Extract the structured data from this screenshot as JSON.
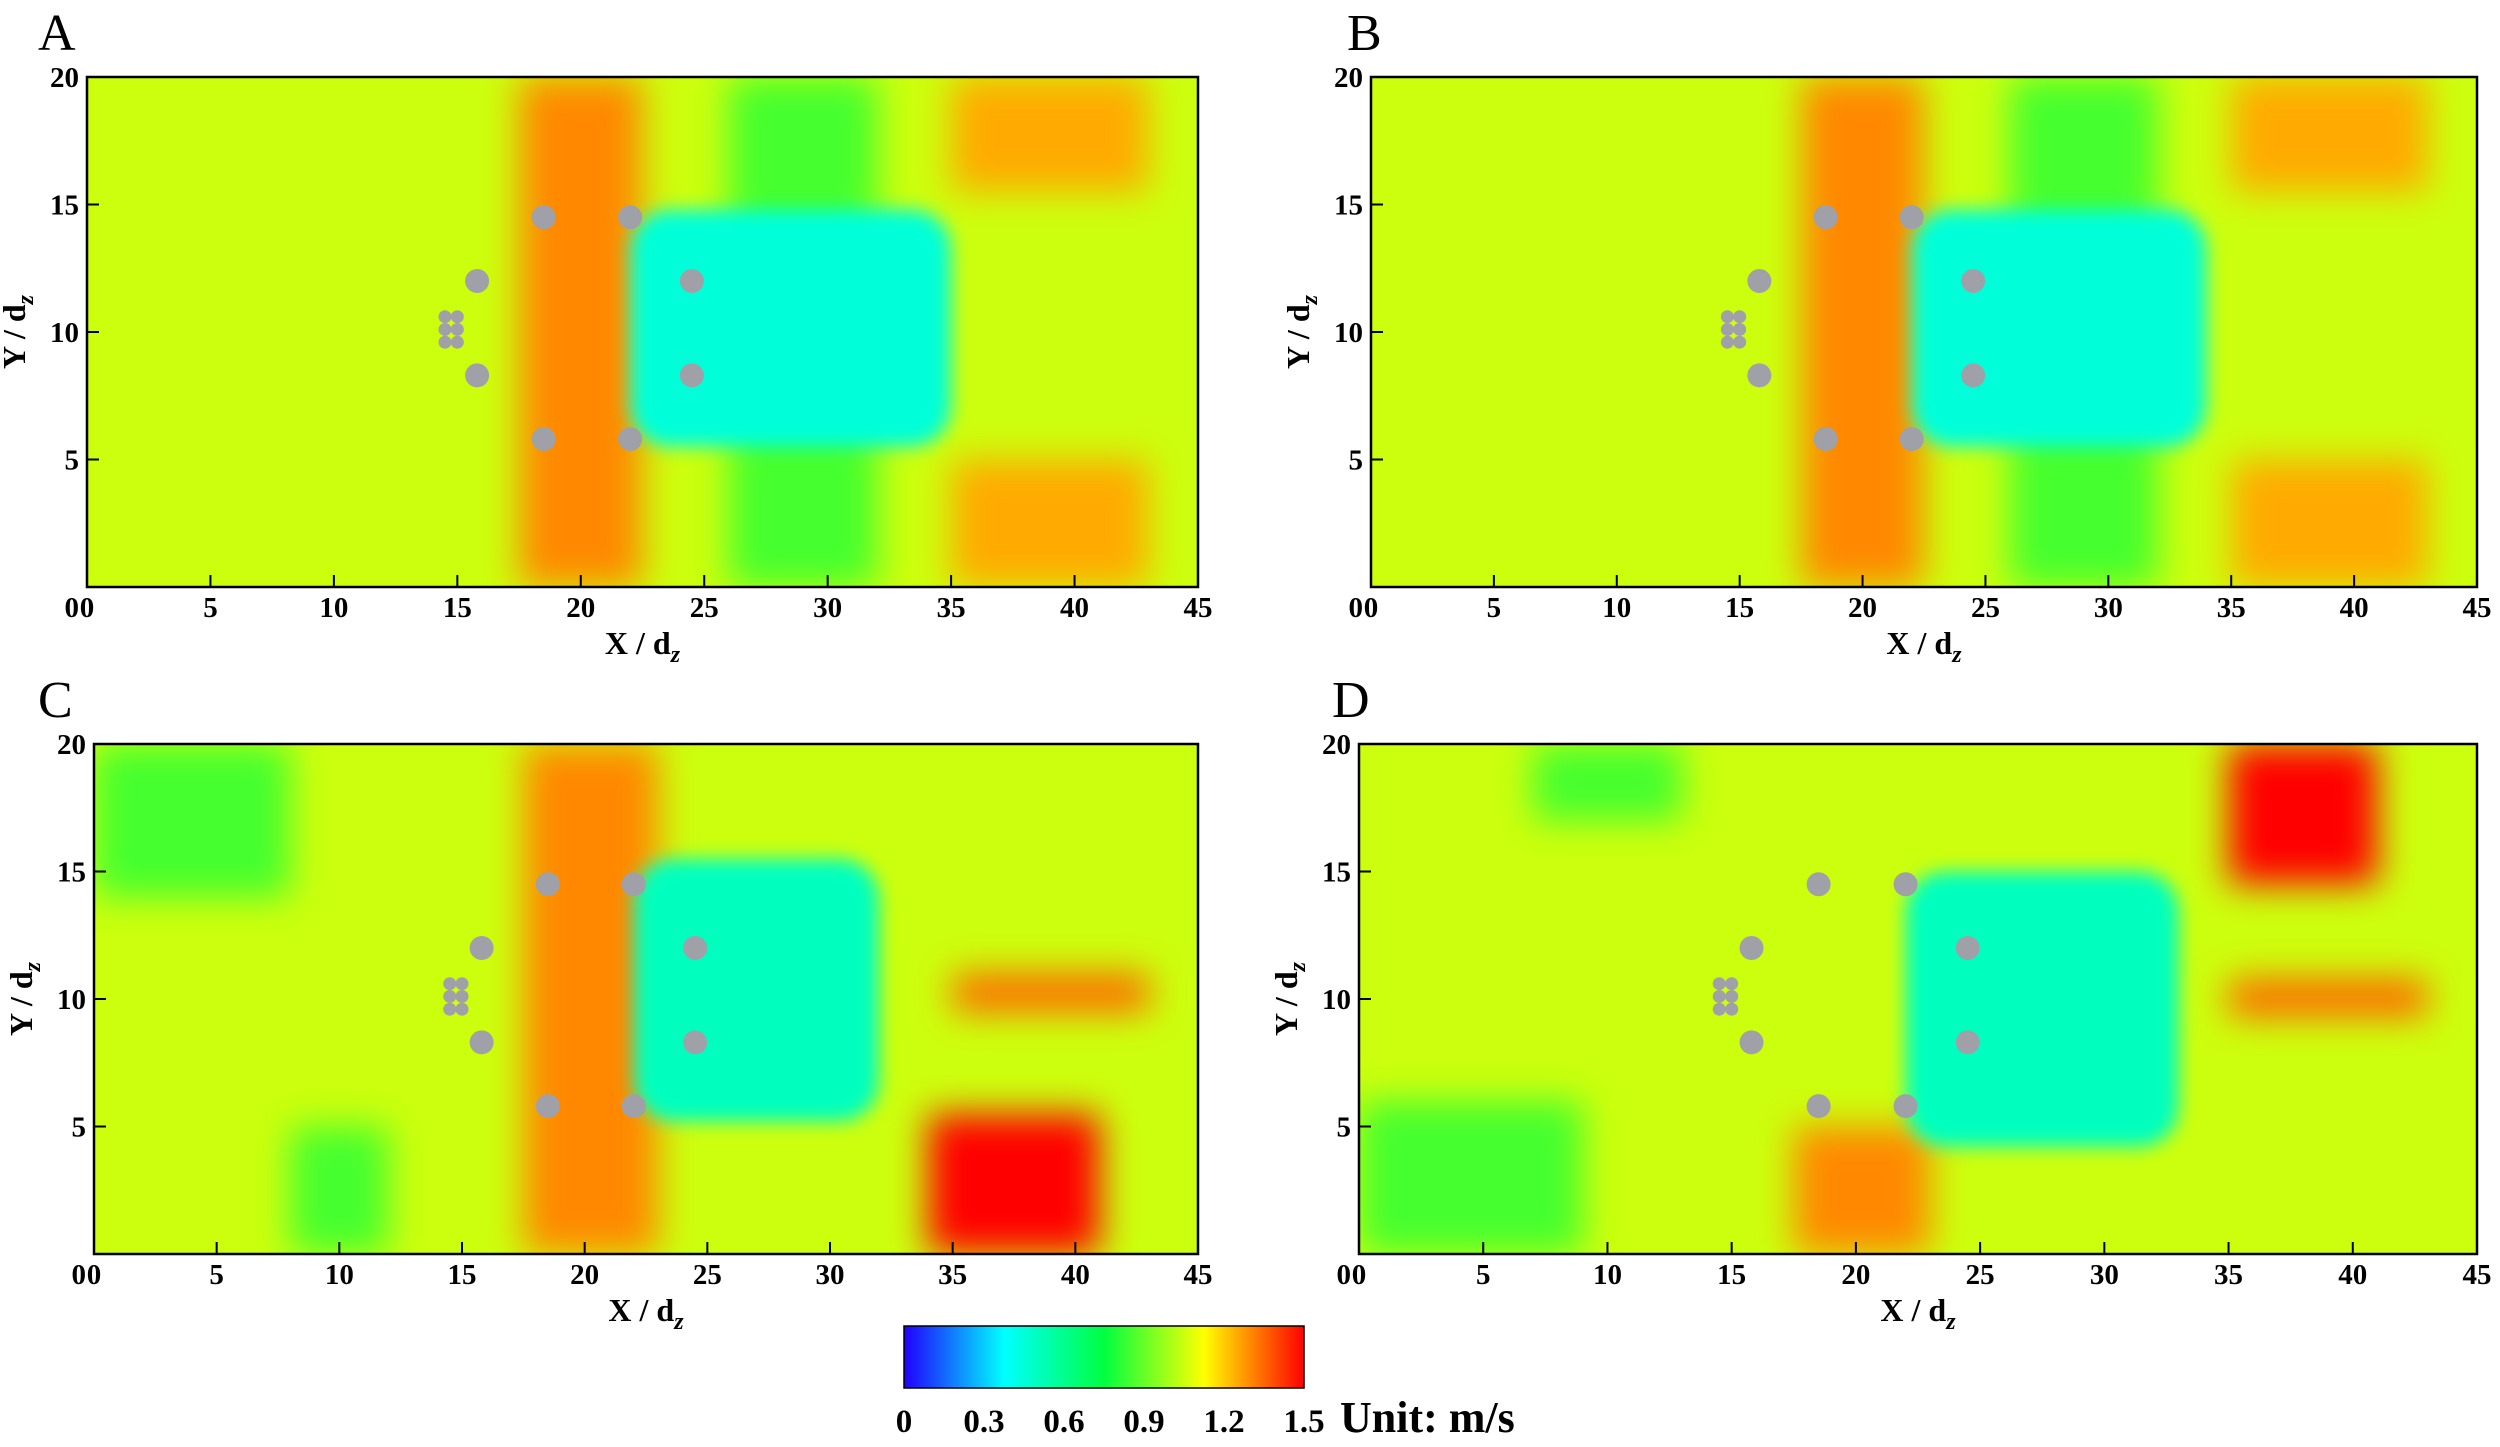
{
  "chart_data": {
    "type": "heatmap",
    "description_units": "velocity magnitude, m/s",
    "panels": [
      {
        "label": "A",
        "xlabel": "X / d",
        "xlabel_sub": "z",
        "ylabel": "Y / d",
        "ylabel_sub": "z",
        "xlim": [
          0,
          45
        ],
        "ylim": [
          0,
          20
        ],
        "xticks": [
          0,
          5,
          10,
          15,
          20,
          25,
          30,
          35,
          40,
          45
        ],
        "yticks": [
          5,
          10,
          15,
          20
        ],
        "background_velocity": 1.05,
        "bands": [
          {
            "x": [
              17.5,
              22.5
            ],
            "y": [
              0,
              20
            ],
            "velocity": 1.3
          },
          {
            "x": [
              26,
              32
            ],
            "y": [
              0,
              20
            ],
            "velocity": 0.85
          },
          {
            "x": [
              35,
              43
            ],
            "y": [
              15.5,
              20
            ],
            "velocity": 1.25
          },
          {
            "x": [
              35,
              43
            ],
            "y": [
              0,
              5
            ],
            "velocity": 1.25
          }
        ],
        "wakes": [
          {
            "x": [
              22,
              35
            ],
            "y": [
              5.5,
              14.8
            ],
            "velocity": 0.45
          }
        ],
        "cylinders_small": [
          [
            14.5,
            9.6
          ],
          [
            15,
            9.6
          ],
          [
            14.5,
            10.1
          ],
          [
            15,
            10.1
          ],
          [
            14.5,
            10.6
          ],
          [
            15,
            10.6
          ]
        ],
        "cylinders_large": [
          [
            15.8,
            12
          ],
          [
            15.8,
            8.3
          ],
          [
            18.5,
            14.5
          ],
          [
            18.5,
            5.8
          ],
          [
            22,
            14.5
          ],
          [
            22,
            5.8
          ],
          [
            24.5,
            12
          ],
          [
            24.5,
            8.3
          ]
        ]
      },
      {
        "label": "B",
        "xlabel": "X / d",
        "xlabel_sub": "z",
        "ylabel": "Y / d",
        "ylabel_sub": "z",
        "xlim": [
          0,
          45
        ],
        "ylim": [
          0,
          20
        ],
        "xticks": [
          0,
          5,
          10,
          15,
          20,
          25,
          30,
          35,
          40,
          45
        ],
        "yticks": [
          5,
          10,
          15,
          20
        ],
        "background_velocity": 1.05,
        "bands": [
          {
            "x": [
              17.5,
              22.5
            ],
            "y": [
              0,
              20
            ],
            "velocity": 1.3
          },
          {
            "x": [
              26,
              32
            ],
            "y": [
              0,
              20
            ],
            "velocity": 0.85
          },
          {
            "x": [
              35,
              43
            ],
            "y": [
              15.5,
              20
            ],
            "velocity": 1.25
          },
          {
            "x": [
              35,
              43
            ],
            "y": [
              0,
              5
            ],
            "velocity": 1.25
          }
        ],
        "wakes": [
          {
            "x": [
              22,
              34
            ],
            "y": [
              5.5,
              14.8
            ],
            "velocity": 0.45
          }
        ],
        "cylinders_small": [
          [
            14.5,
            9.6
          ],
          [
            15,
            9.6
          ],
          [
            14.5,
            10.1
          ],
          [
            15,
            10.1
          ],
          [
            14.5,
            10.6
          ],
          [
            15,
            10.6
          ]
        ],
        "cylinders_large": [
          [
            15.8,
            12
          ],
          [
            15.8,
            8.3
          ],
          [
            18.5,
            14.5
          ],
          [
            18.5,
            5.8
          ],
          [
            22,
            14.5
          ],
          [
            22,
            5.8
          ],
          [
            24.5,
            12
          ],
          [
            24.5,
            8.3
          ]
        ]
      },
      {
        "label": "C",
        "xlabel": "X / d",
        "xlabel_sub": "z",
        "ylabel": "Y / d",
        "ylabel_sub": "z",
        "xlim": [
          0,
          45
        ],
        "ylim": [
          0,
          20
        ],
        "xticks": [
          0,
          5,
          10,
          15,
          20,
          25,
          30,
          35,
          40,
          45
        ],
        "yticks": [
          5,
          10,
          15,
          20
        ],
        "background_velocity": 1.05,
        "bands": [
          {
            "x": [
              0,
              8
            ],
            "y": [
              14,
              20
            ],
            "velocity": 0.85
          },
          {
            "x": [
              8,
              12
            ],
            "y": [
              0,
              5
            ],
            "velocity": 0.85
          },
          {
            "x": [
              17.5,
              23
            ],
            "y": [
              0,
              20
            ],
            "velocity": 1.3
          },
          {
            "x": [
              34,
              41
            ],
            "y": [
              0,
              5.5
            ],
            "velocity": 1.5
          },
          {
            "x": [
              35,
              43
            ],
            "y": [
              9.5,
              11
            ],
            "velocity": 1.35
          }
        ],
        "wakes": [
          {
            "x": [
              22,
              32
            ],
            "y": [
              5.2,
              15.5
            ],
            "velocity": 0.5
          }
        ],
        "cylinders_small": [
          [
            14.5,
            9.6
          ],
          [
            15,
            9.6
          ],
          [
            14.5,
            10.1
          ],
          [
            15,
            10.1
          ],
          [
            14.5,
            10.6
          ],
          [
            15,
            10.6
          ]
        ],
        "cylinders_large": [
          [
            15.8,
            12
          ],
          [
            15.8,
            8.3
          ],
          [
            18.5,
            14.5
          ],
          [
            18.5,
            5.8
          ],
          [
            22,
            14.5
          ],
          [
            22,
            5.8
          ],
          [
            24.5,
            12
          ],
          [
            24.5,
            8.3
          ]
        ]
      },
      {
        "label": "D",
        "xlabel": "X / d",
        "xlabel_sub": "z",
        "ylabel": "Y / d",
        "ylabel_sub": "z",
        "xlim": [
          0,
          45
        ],
        "ylim": [
          0,
          20
        ],
        "xticks": [
          0,
          5,
          10,
          15,
          20,
          25,
          30,
          35,
          40,
          45
        ],
        "yticks": [
          5,
          10,
          15,
          20
        ],
        "background_velocity": 1.05,
        "bands": [
          {
            "x": [
              0,
              9
            ],
            "y": [
              0,
              6
            ],
            "velocity": 0.85
          },
          {
            "x": [
              7,
              13
            ],
            "y": [
              17,
              20
            ],
            "velocity": 0.85
          },
          {
            "x": [
              17.5,
              23
            ],
            "y": [
              0,
              5
            ],
            "velocity": 1.3
          },
          {
            "x": [
              35,
              41
            ],
            "y": [
              14.5,
              20
            ],
            "velocity": 1.5
          },
          {
            "x": [
              35,
              43
            ],
            "y": [
              9.3,
              10.8
            ],
            "velocity": 1.35
          }
        ],
        "wakes": [
          {
            "x": [
              22,
              33
            ],
            "y": [
              4.2,
              15
            ],
            "velocity": 0.5
          }
        ],
        "cylinders_small": [
          [
            14.5,
            9.6
          ],
          [
            15,
            9.6
          ],
          [
            14.5,
            10.1
          ],
          [
            15,
            10.1
          ],
          [
            14.5,
            10.6
          ],
          [
            15,
            10.6
          ]
        ],
        "cylinders_large": [
          [
            15.8,
            12
          ],
          [
            15.8,
            8.3
          ],
          [
            18.5,
            14.5
          ],
          [
            18.5,
            5.8
          ],
          [
            22,
            14.5
          ],
          [
            22,
            5.8
          ],
          [
            24.5,
            12
          ],
          [
            24.5,
            8.3
          ]
        ]
      }
    ],
    "colorbar": {
      "min": 0,
      "max": 1.5,
      "ticks": [
        "0",
        "0.3",
        "0.6",
        "0.9",
        "1.2",
        "1.5"
      ],
      "unit_label": "Unit: m/s",
      "colors": [
        "#2000ff",
        "#00ffff",
        "#00ff40",
        "#ffff00",
        "#ff0000"
      ]
    }
  }
}
